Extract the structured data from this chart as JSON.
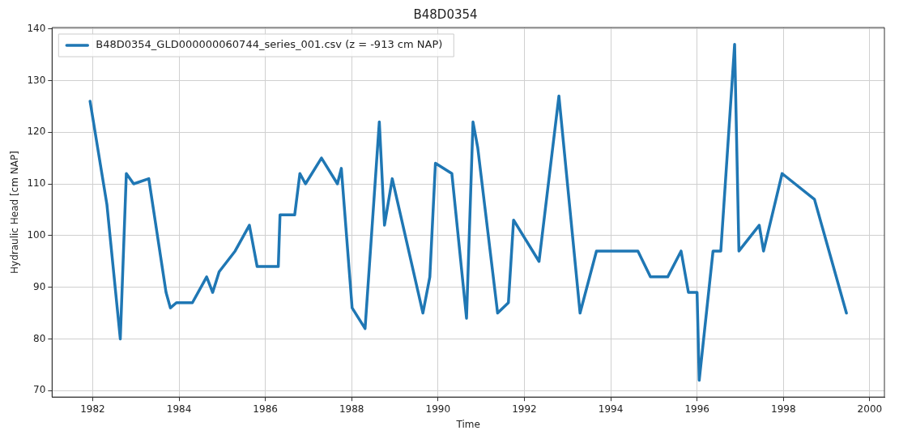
{
  "chart_data": {
    "type": "line",
    "title": "B48D0354",
    "xlabel": "Time",
    "ylabel": "Hydraulic Head [cm NAP]",
    "x": [
      1981.94,
      1982.33,
      1982.64,
      1982.78,
      1982.95,
      1983.3,
      1983.7,
      1983.8,
      1983.94,
      1984.31,
      1984.64,
      1984.78,
      1984.93,
      1985.3,
      1985.63,
      1985.81,
      1986.3,
      1986.34,
      1986.68,
      1986.8,
      1986.93,
      1987.3,
      1987.67,
      1987.76,
      1988.01,
      1988.31,
      1988.64,
      1988.76,
      1988.94,
      1989.65,
      1989.81,
      1989.94,
      1990.32,
      1990.66,
      1990.81,
      1990.92,
      1991.38,
      1991.63,
      1991.75,
      1992.34,
      1992.8,
      1993.29,
      1993.67,
      1994.63,
      1994.92,
      1995.32,
      1995.63,
      1995.8,
      1996.0,
      1996.05,
      1996.37,
      1996.55,
      1996.87,
      1996.97,
      1997.44,
      1997.54,
      1997.97,
      1998.72,
      1999.46
    ],
    "series": [
      {
        "name": "B48D0354_GLD000000060744_series_001.csv (z = -913 cm NAP)",
        "color": "#1f77b4",
        "values": [
          126,
          106,
          80,
          112,
          110,
          111,
          89,
          86,
          87,
          87,
          92,
          89,
          93,
          97,
          102,
          94,
          94,
          104,
          104,
          112,
          110,
          115,
          110,
          113,
          86,
          82,
          122,
          102,
          111,
          85,
          92,
          114,
          112,
          84,
          122,
          117,
          85,
          87,
          103,
          95,
          127,
          85,
          97,
          97,
          92,
          92,
          97,
          89,
          89,
          72,
          97,
          97,
          137,
          97,
          102,
          97,
          112,
          107,
          85
        ]
      }
    ],
    "xlim": [
      1981.06,
      2000.34
    ],
    "xticks": [
      1982,
      1984,
      1986,
      1988,
      1990,
      1992,
      1994,
      1996,
      1998,
      2000
    ],
    "ylim": [
      68.75,
      140.25
    ],
    "yticks": [
      70,
      80,
      90,
      100,
      110,
      120,
      130,
      140
    ],
    "grid": true,
    "legend": "top left",
    "marker": "none",
    "line_style": "solid"
  }
}
